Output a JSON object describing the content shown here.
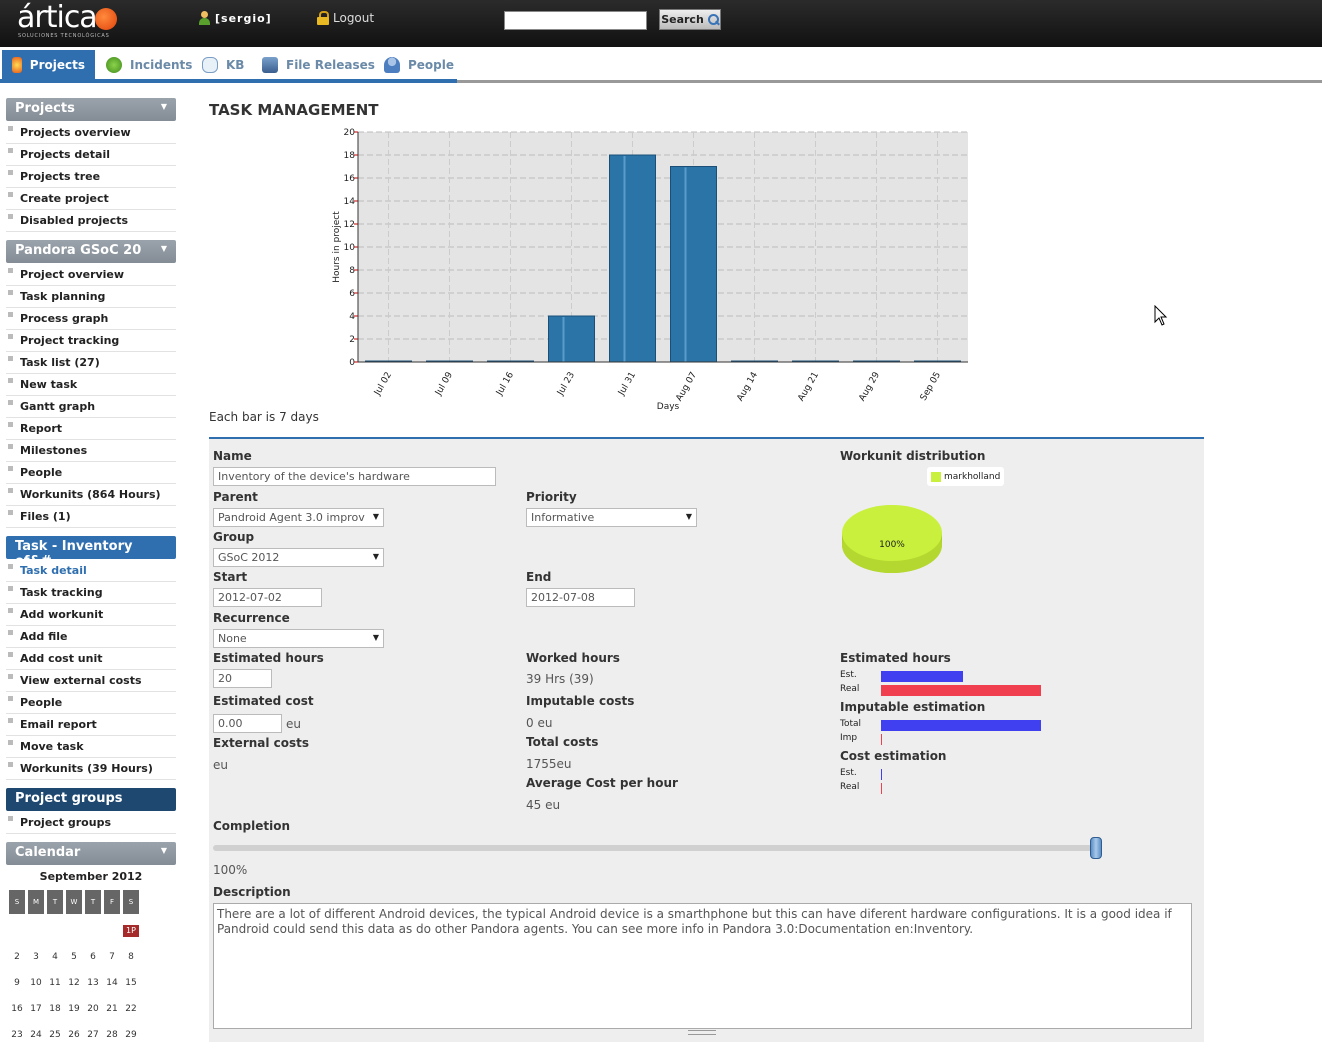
{
  "header": {
    "logo_text": "ártica",
    "logo_sub": "SOLUCIONES TECNOLÓGICAS",
    "user_label": "[sergio]",
    "logout_label": "Logout",
    "search_value": "",
    "search_button": "Search"
  },
  "tabs": [
    {
      "label": "Projects",
      "active": true
    },
    {
      "label": "Incidents"
    },
    {
      "label": "KB"
    },
    {
      "label": "File Releases"
    },
    {
      "label": "People"
    }
  ],
  "sidebar": {
    "projects": {
      "title": "Projects",
      "items": [
        "Projects overview",
        "Projects detail",
        "Projects tree",
        "Create project",
        "Disabled projects"
      ]
    },
    "project": {
      "title": "Pandora GSoC 20",
      "items": [
        "Project overview",
        "Task planning",
        "Process graph",
        "Project tracking",
        "Task list (27)",
        "New task",
        "Gantt graph",
        "Report",
        "Milestones",
        "People",
        "Workunits (864 Hours)",
        "Files (1)"
      ]
    },
    "task": {
      "title": "Task - Inventory of&#",
      "items": [
        "Task detail",
        "Task tracking",
        "Add workunit",
        "Add file",
        "Add cost unit",
        "View external costs",
        "People",
        "Email report",
        "Move task",
        "Workunits (39 Hours)"
      ]
    },
    "groups": {
      "title": "Project groups",
      "items": [
        "Project groups"
      ]
    },
    "calendar": {
      "title": "Calendar",
      "month": "September 2012",
      "day_headers": [
        "S",
        "M",
        "T",
        "W",
        "T",
        "F",
        "S"
      ],
      "weeks": [
        [
          "",
          "",
          "",
          "",
          "",
          "",
          "1P"
        ],
        [
          "2",
          "3",
          "4",
          "5",
          "6",
          "7",
          "8"
        ],
        [
          "9",
          "10",
          "11",
          "12",
          "13",
          "14",
          "15"
        ],
        [
          "16",
          "17",
          "18",
          "19",
          "20",
          "21",
          "22"
        ],
        [
          "23",
          "24",
          "25",
          "26",
          "27",
          "28",
          "29"
        ]
      ]
    }
  },
  "main": {
    "title": "TASK MANAGEMENT",
    "bar_note": "Each bar is 7 days"
  },
  "chart_data": {
    "type": "bar",
    "categories": [
      "Jul 02",
      "Jul 09",
      "Jul 16",
      "Jul 23",
      "Jul 31",
      "Aug 07",
      "Aug 14",
      "Aug 21",
      "Aug 29",
      "Sep 05"
    ],
    "values": [
      0,
      0,
      0,
      4,
      18,
      17,
      0,
      0,
      0,
      0
    ],
    "xlabel": "Days",
    "ylabel": "Hours in project",
    "ylim": [
      0,
      20
    ],
    "yticks": [
      0,
      2,
      4,
      6,
      8,
      10,
      12,
      14,
      16,
      18,
      20
    ],
    "grid": true,
    "bar_color": "#2a74a8"
  },
  "form": {
    "name_label": "Name",
    "name_value": "Inventory of the device's hardware",
    "parent_label": "Parent",
    "parent_value": "Pandroid Agent 3.0 improv",
    "priority_label": "Priority",
    "priority_value": "Informative",
    "group_label": "Group",
    "group_value": "GSoC 2012",
    "start_label": "Start",
    "start_value": "2012-07-02",
    "end_label": "End",
    "end_value": "2012-07-08",
    "recurrence_label": "Recurrence",
    "recurrence_value": "None",
    "est_hours_label": "Estimated hours",
    "est_hours_value": "20",
    "worked_hours_label": "Worked hours",
    "worked_hours_value": "39 Hrs (39)",
    "est_cost_label": "Estimated cost",
    "est_cost_value": "0.00",
    "est_cost_unit": "eu",
    "imputable_costs_label": "Imputable costs",
    "imputable_costs_value": "0 eu",
    "external_costs_label": "External costs",
    "external_costs_value": "eu",
    "total_costs_label": "Total costs",
    "total_costs_value": "1755eu",
    "avg_cost_label": "Average Cost per hour",
    "avg_cost_value": "45 eu",
    "completion_label": "Completion",
    "completion_value": "100%",
    "completion_fraction": 1.0,
    "description_label": "Description",
    "description_value": "There are a lot of different Android devices, the typical Android device is a smarthphone but this can have diferent hardware configurations. It is a good idea if Pandroid could send this data as do other Pandora agents. You can see more info in Pandora 3.0:Documentation en:Inventory."
  },
  "side_stats": {
    "workunit_title": "Workunit distribution",
    "pie_legend": "markholland",
    "pie_label": "100%",
    "pie_color": "#c8f03c",
    "est_hours_title": "Estimated hours",
    "est_label": "Est.",
    "real_label": "Real",
    "est_hours_est": 20,
    "est_hours_real": 39,
    "imputable_title": "Imputable estimation",
    "total_label": "Total",
    "imp_label": "Imp",
    "imputable_total": 1755,
    "imputable_imp": 0,
    "cost_title": "Cost estimation",
    "cost_est_label": "Est.",
    "cost_real_label": "Real",
    "cost_est": 0,
    "cost_real": 0,
    "est_color": "#4040f0",
    "real_color": "#f04050"
  }
}
